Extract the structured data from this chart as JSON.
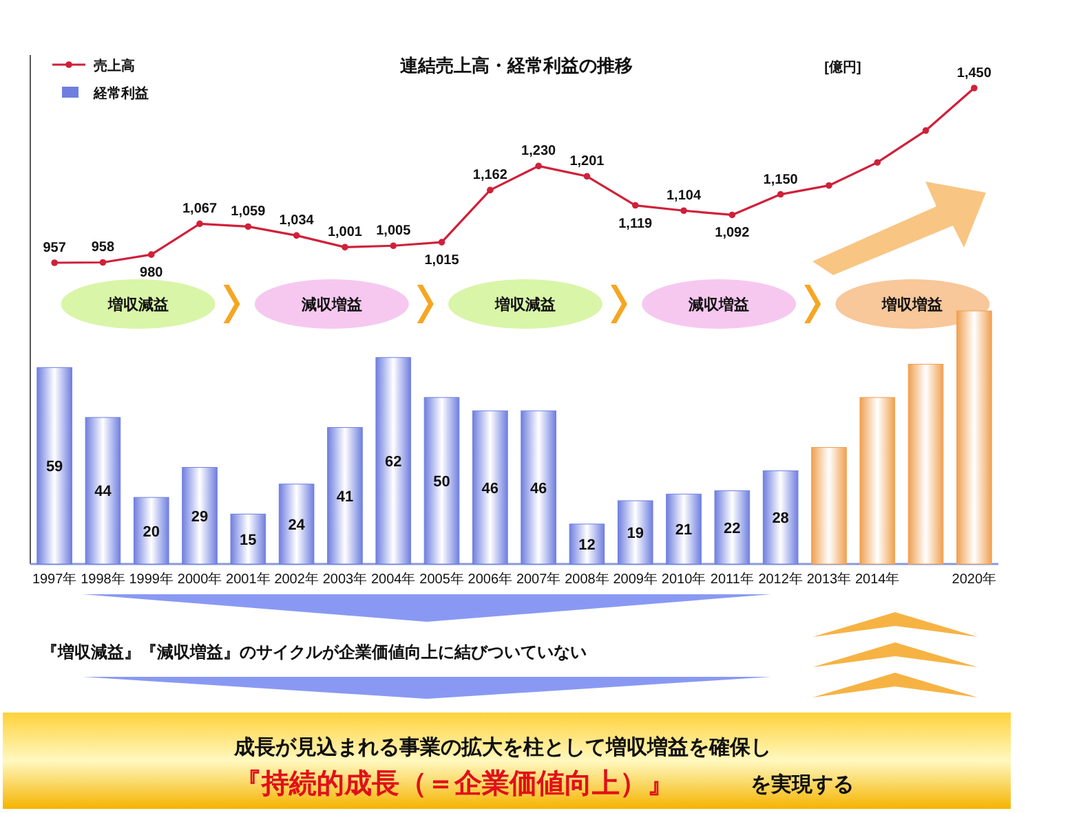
{
  "chart_data": [
    {
      "type": "line",
      "title": "連結売上高・経常利益の推移",
      "legend": "top left",
      "marker": "circle",
      "categories": [
        null,
        null,
        null,
        null,
        null,
        null,
        null,
        null,
        null,
        null,
        null,
        null,
        null,
        null,
        null,
        null,
        null,
        null,
        null,
        null
      ],
      "series": [
        {
          "name": "売上高",
          "color": "#d0203a",
          "values": [
            957,
            958,
            980,
            1067,
            1059,
            1034,
            1001,
            1005,
            1015,
            1162,
            1230,
            1201,
            1119,
            1104,
            1092,
            1150,
            1175,
            1240,
            1330,
            1450
          ],
          "value_labels": [
            "957",
            "958",
            "980",
            "1,067",
            "1,059",
            "1,034",
            "1,001",
            "1,005",
            "1,015",
            "1,162",
            "1,230",
            "1,201",
            "1,119",
            "1,104",
            "1,092",
            "1,150",
            null,
            null,
            null,
            "1,450"
          ]
        }
      ],
      "annotations": [
        "[億円]"
      ]
    },
    {
      "type": "bar",
      "legend": "top left",
      "categories": [
        "1997年",
        "1998年",
        "1999年",
        "2000年",
        "2001年",
        "2002年",
        "2003年",
        "2004年",
        "2005年",
        "2006年",
        "2007年",
        "2008年",
        "2009年",
        "2010年",
        "2011年",
        "2012年",
        "2013年",
        "2014年",
        null,
        "2020年"
      ],
      "series": [
        {
          "name": "経常利益",
          "values": [
            59,
            44,
            20,
            29,
            15,
            24,
            41,
            62,
            50,
            46,
            46,
            12,
            19,
            21,
            22,
            28,
            35,
            50,
            60,
            76
          ],
          "colors": [
            "#6f7fe0",
            "#6f7fe0",
            "#6f7fe0",
            "#6f7fe0",
            "#6f7fe0",
            "#6f7fe0",
            "#6f7fe0",
            "#6f7fe0",
            "#6f7fe0",
            "#6f7fe0",
            "#6f7fe0",
            "#6f7fe0",
            "#6f7fe0",
            "#6f7fe0",
            "#6f7fe0",
            "#6f7fe0",
            "#f0a050",
            "#f0a050",
            "#f0a050",
            "#f0a050"
          ],
          "value_labels": [
            "59",
            "44",
            "20",
            "29",
            "15",
            "24",
            "41",
            "62",
            "50",
            "46",
            "46",
            "12",
            "19",
            "21",
            "22",
            "28",
            null,
            null,
            null,
            null
          ]
        }
      ],
      "annotations": [
        "増収減益",
        "減収増益",
        "増収減益",
        "減収増益",
        "増収増益",
        "『増収減益』『減収増益』のサイクルが企業価値向上に結びついていない",
        "成長が見込まれる事業の拡大を柱として増収増益を確保し",
        "『持続的成長（＝企業価値向上）』",
        "を実現する"
      ]
    }
  ]
}
